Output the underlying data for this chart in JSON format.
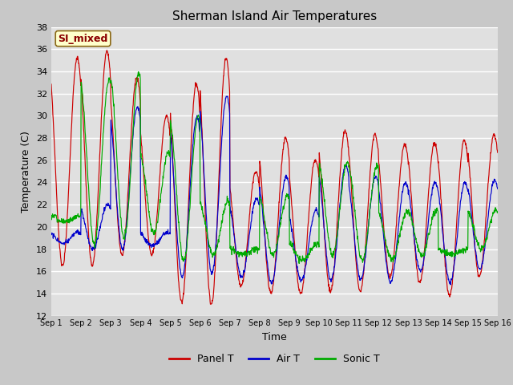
{
  "title": "Sherman Island Air Temperatures",
  "xlabel": "Time",
  "ylabel": "Temperature (C)",
  "annotation": "SI_mixed",
  "ylim": [
    12,
    38
  ],
  "yticks": [
    12,
    14,
    16,
    18,
    20,
    22,
    24,
    26,
    28,
    30,
    32,
    34,
    36,
    38
  ],
  "xtick_labels": [
    "Sep 1",
    "Sep 2",
    "Sep 3",
    "Sep 4",
    "Sep 5",
    "Sep 6",
    "Sep 7",
    "Sep 8",
    "Sep 9",
    "Sep 10",
    "Sep 11",
    "Sep 12",
    "Sep 13",
    "Sep 14",
    "Sep 15",
    "Sep 16"
  ],
  "legend": [
    "Panel T",
    "Air T",
    "Sonic T"
  ],
  "colors": [
    "#cc0000",
    "#0000cc",
    "#00aa00"
  ],
  "fig_facecolor": "#c8c8c8",
  "ax_facecolor": "#e0e0e0",
  "n_days": 15,
  "pts_per_day": 96,
  "panel_peaks": [
    35.2,
    35.9,
    33.4,
    30.0,
    32.9,
    35.2,
    25.0,
    28.0,
    26.1,
    28.6,
    28.3,
    27.4,
    27.5,
    27.8,
    28.3
  ],
  "panel_troughs": [
    16.5,
    16.5,
    17.5,
    17.5,
    13.2,
    13.0,
    14.7,
    14.0,
    14.0,
    14.2,
    14.2,
    15.5,
    15.0,
    13.8,
    15.5
  ],
  "air_peaks": [
    19.5,
    22.0,
    30.8,
    19.5,
    29.9,
    31.8,
    22.5,
    24.5,
    21.5,
    25.5,
    24.5,
    24.0,
    24.0,
    24.0,
    24.2
  ],
  "air_troughs": [
    18.5,
    18.0,
    18.0,
    18.3,
    15.5,
    15.8,
    15.5,
    15.0,
    15.2,
    15.2,
    15.3,
    15.0,
    16.0,
    15.0,
    16.2
  ],
  "sonic_peaks": [
    21.0,
    33.3,
    33.8,
    26.7,
    29.9,
    22.3,
    18.0,
    22.8,
    18.5,
    25.8,
    25.5,
    21.3,
    21.5,
    18.0,
    21.5
  ],
  "sonic_troughs": [
    20.5,
    18.5,
    19.0,
    19.5,
    17.0,
    17.5,
    17.5,
    17.5,
    17.0,
    17.5,
    17.0,
    17.0,
    17.5,
    17.5,
    18.0
  ],
  "panel_peak_phase": 0.62,
  "air_peak_phase": 0.6,
  "sonic_peak_phase": 0.55
}
